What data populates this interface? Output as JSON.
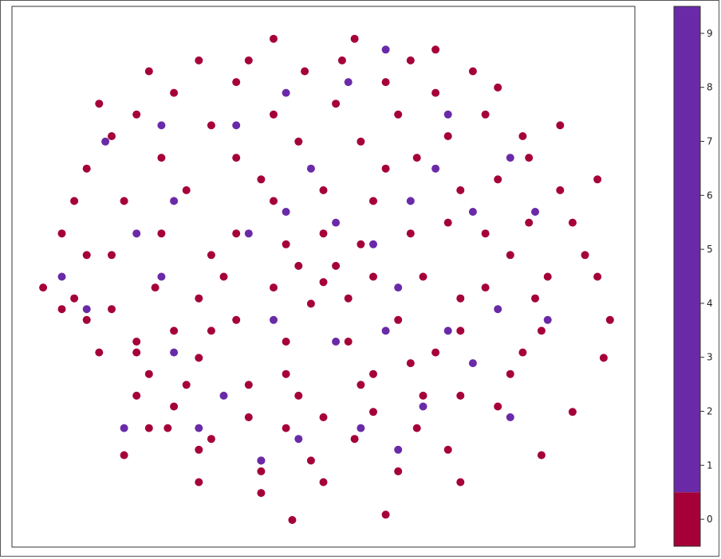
{
  "chart_data": {
    "type": "scatter",
    "title": "",
    "xlabel": "",
    "ylabel": "",
    "xlim": [
      -50,
      50
    ],
    "ylim": [
      -50,
      50
    ],
    "axis_ticks_visible": false,
    "grid": false,
    "colorbar": {
      "placement": "right",
      "min": -0.5,
      "max": 9.5,
      "ticks": [
        0,
        1,
        2,
        3,
        4,
        5,
        6,
        7,
        8,
        9
      ],
      "tick_labels": [
        "0",
        "1",
        "2",
        "3",
        "4",
        "5",
        "6",
        "7",
        "8",
        "9"
      ],
      "segments": [
        {
          "from": -0.5,
          "to": 0.5,
          "color": "#a50038"
        },
        {
          "from": 0.5,
          "to": 9.5,
          "color": "#6a2aa8"
        }
      ]
    },
    "series": [
      {
        "label_value": 0,
        "color": "#a50038",
        "points": [
          [
            -42,
            -6
          ],
          [
            -38,
            -8
          ],
          [
            -30,
            -12
          ],
          [
            -22,
            -20
          ],
          [
            -10,
            -40
          ],
          [
            -20,
            -38
          ],
          [
            -32,
            -33
          ],
          [
            -5,
            -45
          ],
          [
            10,
            -44
          ],
          [
            22,
            -38
          ],
          [
            35,
            -33
          ],
          [
            40,
            -25
          ],
          [
            45,
            -15
          ],
          [
            44,
            0
          ],
          [
            40,
            10
          ],
          [
            33,
            22
          ],
          [
            28,
            35
          ],
          [
            18,
            42
          ],
          [
            5,
            44
          ],
          [
            -8,
            44
          ],
          [
            -20,
            40
          ],
          [
            -30,
            30
          ],
          [
            -38,
            20
          ],
          [
            -42,
            8
          ],
          [
            -45,
            -2
          ],
          [
            -30,
            -22
          ],
          [
            -25,
            -28
          ],
          [
            -18,
            -30
          ],
          [
            -10,
            -34
          ],
          [
            -2,
            -34
          ],
          [
            5,
            -30
          ],
          [
            15,
            -28
          ],
          [
            22,
            -22
          ],
          [
            30,
            -18
          ],
          [
            35,
            -10
          ],
          [
            36,
            0
          ],
          [
            33,
            10
          ],
          [
            28,
            18
          ],
          [
            20,
            26
          ],
          [
            12,
            30
          ],
          [
            2,
            32
          ],
          [
            -8,
            30
          ],
          [
            -18,
            28
          ],
          [
            -26,
            22
          ],
          [
            -32,
            14
          ],
          [
            -34,
            4
          ],
          [
            -34,
            -6
          ],
          [
            -30,
            -14
          ],
          [
            -20,
            -15
          ],
          [
            -12,
            -20
          ],
          [
            -4,
            -22
          ],
          [
            6,
            -20
          ],
          [
            14,
            -16
          ],
          [
            22,
            -10
          ],
          [
            26,
            -2
          ],
          [
            26,
            8
          ],
          [
            22,
            16
          ],
          [
            15,
            22
          ],
          [
            6,
            25
          ],
          [
            -4,
            25
          ],
          [
            -14,
            22
          ],
          [
            -22,
            16
          ],
          [
            -26,
            8
          ],
          [
            -27,
            -2
          ],
          [
            -24,
            -10
          ],
          [
            -14,
            -8
          ],
          [
            -6,
            -12
          ],
          [
            4,
            -12
          ],
          [
            12,
            -8
          ],
          [
            16,
            0
          ],
          [
            14,
            8
          ],
          [
            8,
            14
          ],
          [
            0,
            16
          ],
          [
            -8,
            14
          ],
          [
            -14,
            8
          ],
          [
            -16,
            0
          ],
          [
            -8,
            -2
          ],
          [
            -2,
            -5
          ],
          [
            4,
            -4
          ],
          [
            8,
            0
          ],
          [
            6,
            6
          ],
          [
            0,
            8
          ],
          [
            -6,
            6
          ],
          [
            -4,
            2
          ],
          [
            2,
            2
          ],
          [
            0,
            -1
          ],
          [
            -12,
            -26
          ],
          [
            -6,
            -28
          ],
          [
            0,
            -26
          ],
          [
            8,
            -25
          ],
          [
            16,
            -22
          ],
          [
            -24,
            -24
          ],
          [
            -28,
            -18
          ],
          [
            -36,
            -14
          ],
          [
            -40,
            -4
          ],
          [
            -38,
            4
          ],
          [
            30,
            4
          ],
          [
            34,
            -4
          ],
          [
            32,
            -14
          ],
          [
            28,
            -24
          ],
          [
            20,
            -32
          ],
          [
            12,
            -36
          ],
          [
            0,
            -38
          ],
          [
            -10,
            -36
          ],
          [
            -20,
            -32
          ],
          [
            -28,
            -28
          ],
          [
            10,
            36
          ],
          [
            18,
            34
          ],
          [
            26,
            30
          ],
          [
            32,
            26
          ],
          [
            38,
            16
          ],
          [
            42,
            4
          ],
          [
            -14,
            36
          ],
          [
            -24,
            34
          ],
          [
            -34,
            26
          ],
          [
            -40,
            14
          ],
          [
            -18,
            4
          ],
          [
            -20,
            -4
          ],
          [
            -10,
            18
          ],
          [
            10,
            20
          ],
          [
            20,
            10
          ],
          [
            22,
            -4
          ],
          [
            18,
            -14
          ],
          [
            8,
            -18
          ],
          [
            -6,
            -18
          ],
          [
            -18,
            -10
          ],
          [
            3,
            40
          ],
          [
            -3,
            38
          ],
          [
            -12,
            40
          ],
          [
            14,
            40
          ],
          [
            24,
            38
          ],
          [
            -28,
            38
          ],
          [
            -36,
            32
          ],
          [
            38,
            28
          ],
          [
            44,
            18
          ],
          [
            46,
            -8
          ]
        ]
      },
      {
        "label_value": 1,
        "color": "#6a2aa8",
        "points": [
          [
            -35,
            25
          ],
          [
            -26,
            28
          ],
          [
            -32,
            -28
          ],
          [
            -20,
            -28
          ],
          [
            -12,
            8
          ],
          [
            -6,
            12
          ],
          [
            2,
            10
          ],
          [
            8,
            6
          ],
          [
            12,
            -2
          ],
          [
            10,
            -10
          ],
          [
            2,
            -12
          ],
          [
            -8,
            -8
          ],
          [
            14,
            14
          ],
          [
            18,
            20
          ],
          [
            24,
            12
          ],
          [
            28,
            -6
          ],
          [
            24,
            -16
          ],
          [
            16,
            -24
          ],
          [
            6,
            -28
          ],
          [
            -4,
            -30
          ],
          [
            -16,
            -22
          ],
          [
            -24,
            -14
          ],
          [
            -26,
            0
          ],
          [
            -24,
            14
          ],
          [
            4,
            36
          ],
          [
            10,
            42
          ],
          [
            -6,
            34
          ],
          [
            -14,
            28
          ],
          [
            20,
            30
          ],
          [
            30,
            22
          ],
          [
            34,
            12
          ],
          [
            36,
            -8
          ],
          [
            30,
            -26
          ],
          [
            -30,
            8
          ],
          [
            -38,
            -6
          ],
          [
            -42,
            0
          ],
          [
            -10,
            -34
          ],
          [
            12,
            -32
          ],
          [
            20,
            -10
          ],
          [
            -2,
            20
          ]
        ]
      }
    ]
  }
}
